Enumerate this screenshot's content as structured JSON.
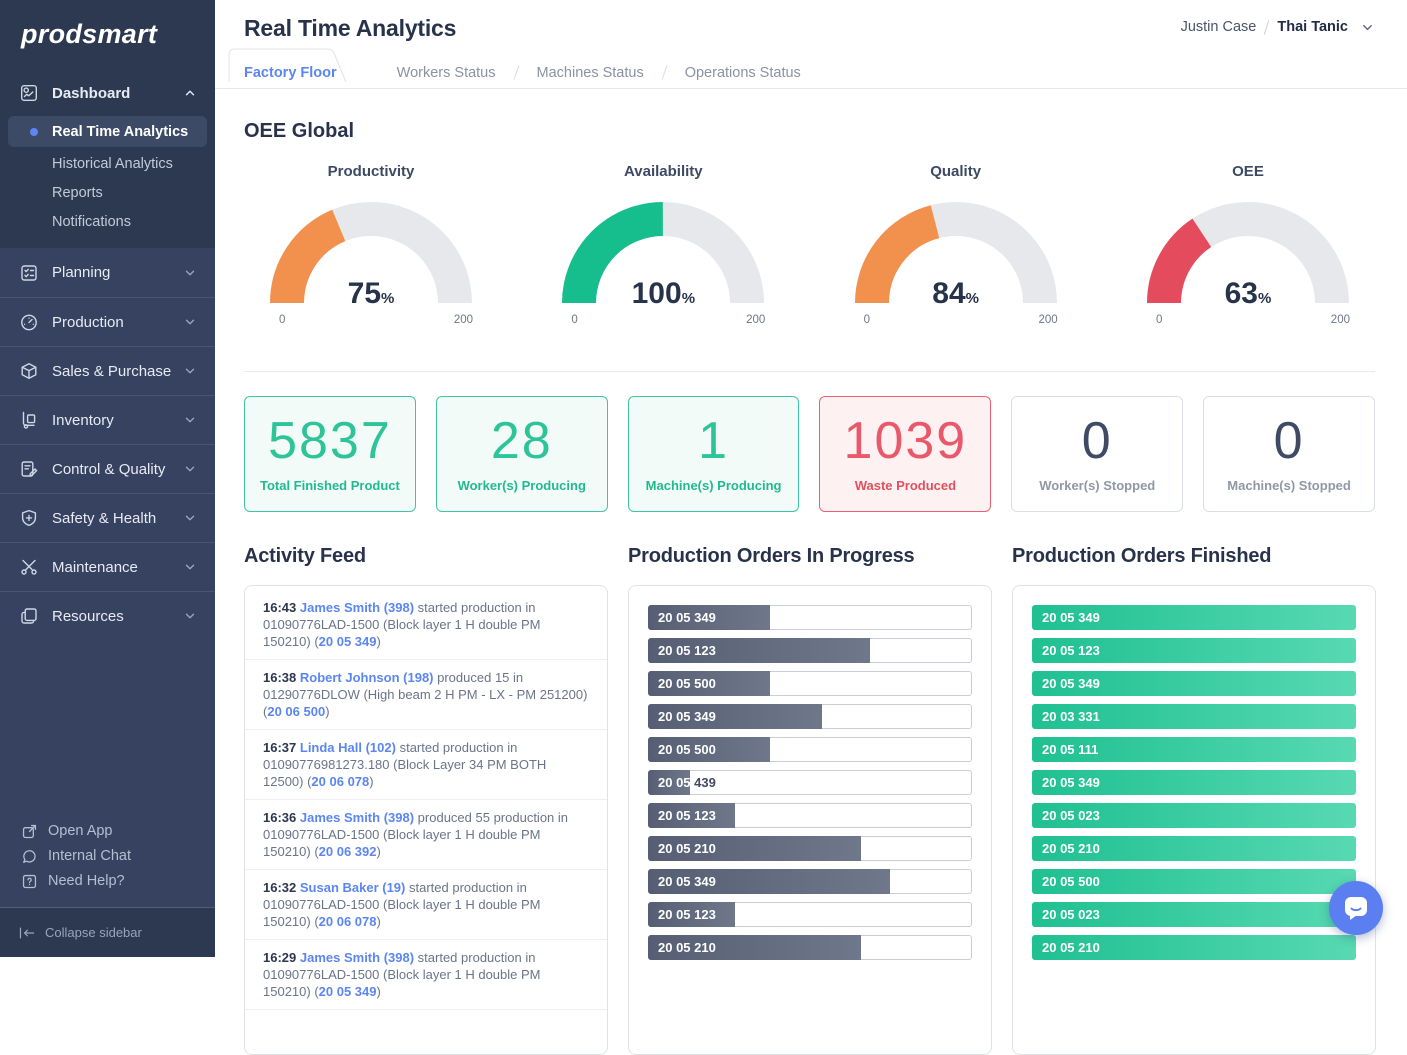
{
  "app": {
    "logo": "prodsmart"
  },
  "sidebar": {
    "groups": [
      {
        "label": "Dashboard"
      },
      {
        "label": "Planning"
      },
      {
        "label": "Production"
      },
      {
        "label": "Sales & Purchase"
      },
      {
        "label": "Inventory"
      },
      {
        "label": "Control & Quality"
      },
      {
        "label": "Safety & Health"
      },
      {
        "label": "Maintenance"
      },
      {
        "label": "Resources"
      }
    ],
    "dashboard_children": [
      {
        "label": "Real Time Analytics",
        "active": true
      },
      {
        "label": "Historical Analytics"
      },
      {
        "label": "Reports"
      },
      {
        "label": "Notifications"
      }
    ],
    "footer_links": [
      {
        "label": "Open App"
      },
      {
        "label": "Internal Chat"
      },
      {
        "label": "Need Help?"
      }
    ],
    "collapse_label": "Collapse sidebar"
  },
  "header": {
    "title": "Real Time Analytics",
    "user_name": "Justin Case",
    "account_name": "Thai Tanic"
  },
  "tabs": [
    {
      "label": "Factory Floor",
      "active": true
    },
    {
      "label": "Workers Status"
    },
    {
      "label": "Machines Status"
    },
    {
      "label": "Operations Status"
    }
  ],
  "oee_global": {
    "title": "OEE Global",
    "unit": "%",
    "gauges": [
      {
        "label": "Productivity",
        "value": 75,
        "pct": 37.5,
        "min": 0,
        "max": 200,
        "color": "#f2914e"
      },
      {
        "label": "Availability",
        "value": 100,
        "pct": 50,
        "min": 0,
        "max": 200,
        "color": "#16bd8d"
      },
      {
        "label": "Quality",
        "value": 84,
        "pct": 42,
        "min": 0,
        "max": 200,
        "color": "#f2914e"
      },
      {
        "label": "OEE",
        "value": 63,
        "pct": 31.5,
        "min": 0,
        "max": 200,
        "color": "#e44b5d"
      }
    ]
  },
  "stat_cards": [
    {
      "value": "5837",
      "label": "Total Finished Product",
      "variant": "green"
    },
    {
      "value": "28",
      "label": "Worker(s) Producing",
      "variant": "green"
    },
    {
      "value": "1",
      "label": "Machine(s) Producing",
      "variant": "green"
    },
    {
      "value": "1039",
      "label": "Waste Produced",
      "variant": "red"
    },
    {
      "value": "0",
      "label": "Worker(s) Stopped",
      "variant": "plain"
    },
    {
      "value": "0",
      "label": "Machine(s) Stopped",
      "variant": "plain"
    }
  ],
  "activity_feed": {
    "title": "Activity Feed",
    "entries": [
      {
        "time": "16:43",
        "name": "James Smith (398)",
        "body": "started production in 01090776LAD-1500 (Block layer 1 H double PM 150210) (",
        "code": "20 05 349",
        "close": ")"
      },
      {
        "time": "16:38",
        "name": "Robert Johnson (198)",
        "body": "produced 15 in 01290776DLOW (High beam 2 H PM - LX - PM 251200) (",
        "code": "20 06 500",
        "close": ")"
      },
      {
        "time": "16:37",
        "name": "Linda Hall (102)",
        "body": "started production in 01090776981273.180 (Block Layer 34 PM BOTH 12500) (",
        "code": "20 06 078",
        "close": ")"
      },
      {
        "time": "16:36",
        "name": "James Smith (398)",
        "body": "produced 55 production in 01090776LAD-1500 (Block layer 1 H double PM 150210) (",
        "code": "20 06 392",
        "close": ")"
      },
      {
        "time": "16:32",
        "name": "Susan Baker (19)",
        "body": "started production in 01090776LAD-1500 (Block layer 1 H double PM 150210) (",
        "code": "20 06 078",
        "close": ")"
      },
      {
        "time": "16:29",
        "name": "James Smith (398)",
        "body": "started production in 01090776LAD-1500 (Block layer 1 H double PM 150210) (",
        "code": "20 05 349",
        "close": ")"
      }
    ]
  },
  "orders_in_progress": {
    "title": "Production Orders In Progress",
    "items": [
      {
        "label": "20 05 349",
        "percent": 38
      },
      {
        "label": "20 05 123",
        "percent": 69
      },
      {
        "label": "20 05 500",
        "percent": 38
      },
      {
        "label": "20 05 349",
        "percent": 54
      },
      {
        "label": "20 05 500",
        "percent": 38
      },
      {
        "label": "20 05 439",
        "percent": 13
      },
      {
        "label": "20 05 123",
        "percent": 27
      },
      {
        "label": "20 05 210",
        "percent": 66
      },
      {
        "label": "20 05 349",
        "percent": 75
      },
      {
        "label": "20 05 123",
        "percent": 27
      },
      {
        "label": "20 05 210",
        "percent": 66
      }
    ]
  },
  "orders_finished": {
    "title": "Production Orders Finished",
    "items": [
      "20 05 349",
      "20 05 123",
      "20 05 349",
      "20 03 331",
      "20 05 111",
      "20 05 349",
      "20 05 023",
      "20 05 210",
      "20 05 500",
      "20 05 023",
      "20 05 210"
    ]
  },
  "colors": {
    "accent_blue": "#5b86f2",
    "green": "#16bd8d",
    "orange": "#f2914e",
    "red": "#e44b5d",
    "sidebar_bg": "#36425f",
    "bar_fill_dark": "#565e73",
    "finished_green_start": "#1fc091",
    "finished_green_end": "#58d9b2",
    "chat_button": "#5b7ef0"
  }
}
